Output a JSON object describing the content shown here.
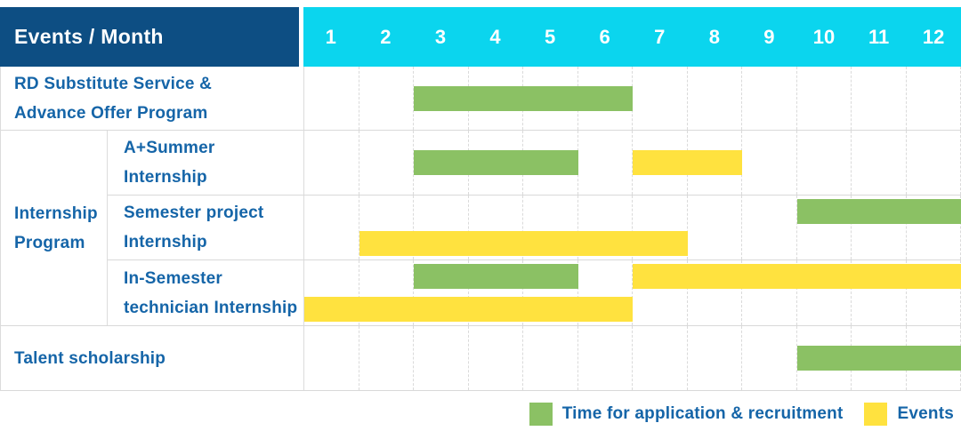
{
  "header": {
    "label": "Events / Month",
    "months": [
      "1",
      "2",
      "3",
      "4",
      "5",
      "6",
      "7",
      "8",
      "9",
      "10",
      "11",
      "12"
    ]
  },
  "group": {
    "label_lines": [
      "Internship",
      "Program"
    ]
  },
  "rows": [
    {
      "label_lines": [
        "RD Substitute Service &",
        "Advance Offer Program"
      ],
      "lines": [
        [
          {
            "kind": "recruitment",
            "start_month": 3,
            "end_month": 6
          }
        ]
      ]
    },
    {
      "label_lines": [
        "A+Summer",
        "Internship"
      ],
      "lines": [
        [
          {
            "kind": "recruitment",
            "start_month": 3,
            "end_month": 5
          },
          {
            "kind": "events",
            "start_month": 7,
            "end_month": 8
          }
        ]
      ]
    },
    {
      "label_lines": [
        "Semester project",
        "Internship"
      ],
      "lines": [
        [
          {
            "kind": "recruitment",
            "start_month": 10,
            "end_month": 12
          }
        ],
        [
          {
            "kind": "events",
            "start_month": 2,
            "end_month": 7
          }
        ]
      ]
    },
    {
      "label_lines": [
        "In-Semester",
        "technician Internship"
      ],
      "lines": [
        [
          {
            "kind": "recruitment",
            "start_month": 3,
            "end_month": 5
          },
          {
            "kind": "events",
            "start_month": 7,
            "end_month": 12
          }
        ],
        [
          {
            "kind": "events",
            "start_month": 1,
            "end_month": 6
          }
        ]
      ]
    },
    {
      "label_lines": [
        "Talent scholarship"
      ],
      "lines": [
        [
          {
            "kind": "recruitment",
            "start_month": 10,
            "end_month": 12
          }
        ]
      ]
    }
  ],
  "legend": [
    {
      "kind": "recruitment",
      "label": "Time for application & recruitment"
    },
    {
      "kind": "events",
      "label": "Events"
    }
  ],
  "colors": {
    "recruitment": "#8bc164",
    "events": "#ffe23f",
    "header_bg": "#0d4e83",
    "months_bg": "#0bd5ee",
    "label_text": "#1565a8",
    "grid_line": "#dadada"
  },
  "chart_data": {
    "type": "bar",
    "variant": "gantt",
    "title": "Events / Month",
    "xlabel": "Month",
    "x_ticks": [
      1,
      2,
      3,
      4,
      5,
      6,
      7,
      8,
      9,
      10,
      11,
      12
    ],
    "x_range": [
      1,
      12
    ],
    "grid": true,
    "legend_position": "bottom-right",
    "series_colors": {
      "Time for application & recruitment": "#8bc164",
      "Events": "#ffe23f"
    },
    "tasks": [
      {
        "name": "RD Substitute Service & Advance Offer Program",
        "group": null,
        "bars": [
          {
            "series": "Time for application & recruitment",
            "start_month": 3,
            "end_month": 6
          }
        ]
      },
      {
        "name": "A+Summer Internship",
        "group": "Internship Program",
        "bars": [
          {
            "series": "Time for application & recruitment",
            "start_month": 3,
            "end_month": 5
          },
          {
            "series": "Events",
            "start_month": 7,
            "end_month": 8
          }
        ]
      },
      {
        "name": "Semester project Internship",
        "group": "Internship Program",
        "bars": [
          {
            "series": "Time for application & recruitment",
            "start_month": 10,
            "end_month": 12
          },
          {
            "series": "Events",
            "start_month": 2,
            "end_month": 7
          }
        ]
      },
      {
        "name": "In-Semester technician Internship",
        "group": "Internship Program",
        "bars": [
          {
            "series": "Time for application & recruitment",
            "start_month": 3,
            "end_month": 5
          },
          {
            "series": "Events",
            "start_month": 7,
            "end_month": 12
          },
          {
            "series": "Events",
            "start_month": 1,
            "end_month": 6
          }
        ]
      },
      {
        "name": "Talent scholarship",
        "group": null,
        "bars": [
          {
            "series": "Time for application & recruitment",
            "start_month": 10,
            "end_month": 12
          }
        ]
      }
    ]
  }
}
